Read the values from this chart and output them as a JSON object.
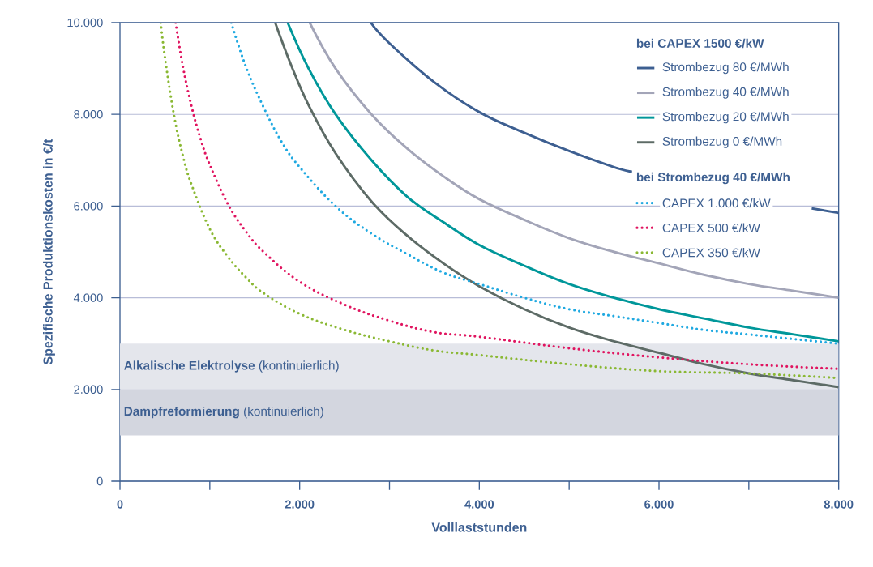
{
  "chart_data": {
    "type": "line",
    "xlabel": "Volllaststunden",
    "ylabel": "Spezifische Produktionskosten in €/t",
    "legend_title": "bei CAPEX 1500 €/kW",
    "annotations": [
      "bei Strombezug 40 €/MWh"
    ],
    "xlim": [
      0,
      8000
    ],
    "ylim": [
      0,
      10000
    ],
    "xticks": [
      0,
      {
        "value": 1000,
        "label": null
      },
      {
        "value": 2000,
        "label": "2.000"
      },
      {
        "value": 3000,
        "label": null
      },
      {
        "value": 4000,
        "label": "4.000"
      },
      {
        "value": 5000,
        "label": null
      },
      {
        "value": 6000,
        "label": "6.000"
      },
      {
        "value": 7000,
        "label": null
      },
      {
        "value": 8000,
        "label": "8.000"
      }
    ],
    "yticks": [
      0,
      {
        "value": 2000,
        "label": "2.000"
      },
      {
        "value": 4000,
        "label": "4.000"
      },
      {
        "value": 6000,
        "label": "6.000"
      },
      {
        "value": 8000,
        "label": "8.000"
      },
      {
        "value": 10000,
        "label": "10.000"
      }
    ],
    "grid": "y",
    "legend": "top right",
    "bands": [
      {
        "axis": "y",
        "from": 2000,
        "to": 3000,
        "label": "**Alkalische Elektrolyse** (kontinuierlich)",
        "color": "#e4e6ec"
      },
      {
        "axis": "y",
        "from": 1000,
        "to": 2000,
        "label": "**Dampfreformierung** (kontinuierlich)",
        "color": "#d3d6df"
      }
    ],
    "series": [
      {
        "name": "Strombezug 80 €/MWh",
        "color": "#3d5f91",
        "line_style": "solid",
        "x": [
          2792,
          3000,
          3500,
          4000,
          4500,
          5000,
          5500,
          5700,
          6000,
          6500,
          7000,
          7500,
          7700,
          8000
        ],
        "values": [
          10000,
          9550,
          8700,
          8050,
          7600,
          7200,
          6850,
          6750,
          null,
          null,
          null,
          null,
          5950,
          5850
        ]
      },
      {
        "name": "Strombezug 40 €/MWh",
        "color": "#a3a5b8",
        "line_style": "solid",
        "x": [
          2112,
          2400,
          2800,
          3200,
          3600,
          4000,
          4500,
          5000,
          5500,
          6000,
          6500,
          7000,
          7500,
          8000
        ],
        "values": [
          10000,
          9000,
          8000,
          7250,
          6650,
          6150,
          5700,
          5300,
          5000,
          4750,
          4500,
          4300,
          4150,
          4000
        ]
      },
      {
        "name": "Strombezug 20 €/MWh",
        "color": "#00979a",
        "line_style": "solid",
        "x": [
          1867,
          2100,
          2400,
          2800,
          3200,
          3600,
          4000,
          4500,
          5000,
          5500,
          6000,
          6500,
          7000,
          7500,
          8000
        ],
        "values": [
          10000,
          9000,
          8000,
          7000,
          6200,
          5650,
          5150,
          4700,
          4300,
          4000,
          3750,
          3550,
          3350,
          3200,
          3050
        ]
      },
      {
        "name": "Strombezug 0 €/MWh",
        "color": "#5d6b66",
        "line_style": "solid",
        "x": [
          1728,
          1900,
          2100,
          2400,
          2800,
          3200,
          3600,
          4000,
          4500,
          5000,
          5500,
          6000,
          6500,
          7000,
          7500,
          8000
        ],
        "values": [
          10000,
          9100,
          8200,
          7150,
          6100,
          5350,
          4750,
          4250,
          3750,
          3350,
          3050,
          2800,
          2550,
          2350,
          2200,
          2050
        ]
      },
      {
        "name": "CAPEX 1.000 €/kW",
        "color": "#1fa9e1",
        "line_style": "dotted",
        "x": [
          1239,
          1400,
          1600,
          1800,
          2000,
          2400,
          2800,
          3200,
          3600,
          4000,
          4500,
          5000,
          5500,
          6000,
          6500,
          7000,
          7500,
          8000
        ],
        "values": [
          10000,
          9050,
          8150,
          7400,
          6850,
          6000,
          5400,
          4950,
          4550,
          4300,
          4000,
          3750,
          3600,
          3450,
          3300,
          3200,
          3100,
          3000
        ]
      },
      {
        "name": "CAPEX 500 €/kW",
        "color": "#e0145f",
        "line_style": "dotted",
        "x": [
          620,
          700,
          800,
          900,
          1000,
          1200,
          1400,
          1600,
          2000,
          2500,
          3000,
          3500,
          4000,
          5000,
          6000,
          7000,
          8000
        ],
        "values": [
          10000,
          9050,
          8150,
          7450,
          6900,
          6050,
          5450,
          5000,
          4350,
          3850,
          3500,
          3250,
          3150,
          2900,
          2700,
          2550,
          2450
        ]
      },
      {
        "name": "CAPEX 350 €/kW",
        "color": "#8ab833",
        "line_style": "dotted",
        "x": [
          454,
          500,
          600,
          700,
          800,
          1000,
          1200,
          1400,
          1600,
          2000,
          2500,
          3000,
          3500,
          4000,
          5000,
          6000,
          7000,
          8000
        ],
        "values": [
          10000,
          9250,
          8000,
          7100,
          6450,
          5500,
          4900,
          4450,
          4100,
          3650,
          3300,
          3050,
          2850,
          2750,
          2550,
          2400,
          2350,
          2250
        ]
      }
    ]
  }
}
